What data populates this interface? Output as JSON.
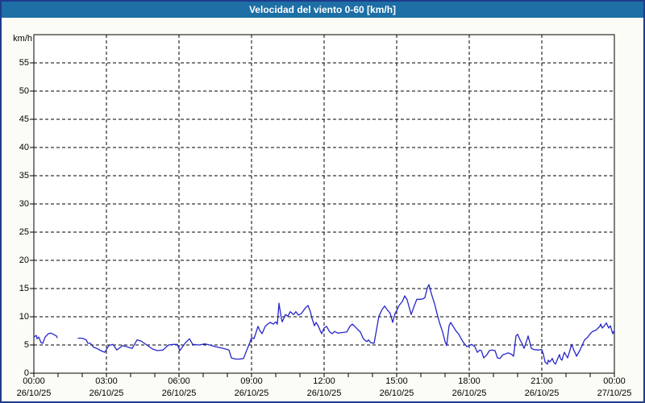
{
  "title": "Velocidad del viento 0-60 [km/h]",
  "y_unit_label": "km/h",
  "colors": {
    "frame": "#1e3c8c",
    "title_bar": "#1d6fa5",
    "title_text": "#ffffff",
    "window_bg": "#fcfcf6",
    "plot_bg": "#ffffff",
    "grid": "#000000",
    "axis_text": "#000000",
    "line": "#2626c9"
  },
  "chart_data": {
    "type": "line",
    "title": "Velocidad del viento 0-60 [km/h]",
    "ylabel": "km/h",
    "xlabel": "",
    "ylim": [
      0,
      60
    ],
    "y_ticks": [
      0,
      5,
      10,
      15,
      20,
      25,
      30,
      35,
      40,
      45,
      50,
      55
    ],
    "x_minutes_range": [
      0,
      1440
    ],
    "minor_tick_minutes": 60,
    "grid": "dashed",
    "legend": "none",
    "x_major_ticks": [
      {
        "minutes": 0,
        "time": "00:00",
        "date": "26/10/25"
      },
      {
        "minutes": 180,
        "time": "03:00",
        "date": "26/10/25"
      },
      {
        "minutes": 360,
        "time": "06:00",
        "date": "26/10/25"
      },
      {
        "minutes": 540,
        "time": "09:00",
        "date": "26/10/25"
      },
      {
        "minutes": 720,
        "time": "12:00",
        "date": "26/10/25"
      },
      {
        "minutes": 900,
        "time": "15:00",
        "date": "26/10/25"
      },
      {
        "minutes": 1080,
        "time": "18:00",
        "date": "26/10/25"
      },
      {
        "minutes": 1260,
        "time": "21:00",
        "date": "26/10/25"
      },
      {
        "minutes": 1440,
        "time": "00:00",
        "date": "27/10/25"
      }
    ],
    "gap_note": "no data between minute 58 and minute 110 (null entry)",
    "series": [
      {
        "name": "Velocidad del viento",
        "color": "#2626c9",
        "points": [
          [
            0,
            6.4
          ],
          [
            6,
            6.7
          ],
          [
            8,
            6.1
          ],
          [
            12,
            6.4
          ],
          [
            18,
            5.4
          ],
          [
            22,
            5.3
          ],
          [
            28,
            6.4
          ],
          [
            36,
            7.0
          ],
          [
            42,
            7.1
          ],
          [
            48,
            6.9
          ],
          [
            56,
            6.6
          ],
          [
            58,
            6.3
          ],
          null,
          [
            110,
            6.2
          ],
          [
            120,
            6.2
          ],
          [
            130,
            5.9
          ],
          [
            134,
            5.3
          ],
          [
            140,
            5.3
          ],
          [
            148,
            4.6
          ],
          [
            156,
            4.4
          ],
          [
            166,
            4.0
          ],
          [
            176,
            3.7
          ],
          [
            186,
            4.9
          ],
          [
            196,
            5.1
          ],
          [
            206,
            4.1
          ],
          [
            220,
            4.9
          ],
          [
            230,
            4.7
          ],
          [
            244,
            4.4
          ],
          [
            256,
            5.9
          ],
          [
            266,
            5.7
          ],
          [
            280,
            5.0
          ],
          [
            294,
            4.3
          ],
          [
            306,
            4.0
          ],
          [
            320,
            4.1
          ],
          [
            334,
            5.0
          ],
          [
            346,
            5.1
          ],
          [
            356,
            5.1
          ],
          [
            362,
            4.0
          ],
          [
            376,
            5.4
          ],
          [
            386,
            6.1
          ],
          [
            394,
            5.1
          ],
          [
            410,
            5.0
          ],
          [
            424,
            5.2
          ],
          [
            436,
            5.0
          ],
          [
            450,
            4.7
          ],
          [
            470,
            4.4
          ],
          [
            484,
            4.1
          ],
          [
            490,
            2.7
          ],
          [
            500,
            2.5
          ],
          [
            510,
            2.5
          ],
          [
            520,
            2.6
          ],
          [
            526,
            3.7
          ],
          [
            534,
            5.1
          ],
          [
            540,
            6.3
          ],
          [
            546,
            6.1
          ],
          [
            556,
            8.3
          ],
          [
            560,
            7.6
          ],
          [
            566,
            7.0
          ],
          [
            574,
            8.3
          ],
          [
            580,
            8.7
          ],
          [
            586,
            9.0
          ],
          [
            594,
            8.7
          ],
          [
            600,
            9.1
          ],
          [
            604,
            8.7
          ],
          [
            608,
            12.4
          ],
          [
            614,
            9.7
          ],
          [
            616,
            9.1
          ],
          [
            624,
            10.4
          ],
          [
            630,
            10.1
          ],
          [
            636,
            10.9
          ],
          [
            644,
            10.4
          ],
          [
            650,
            10.9
          ],
          [
            656,
            10.3
          ],
          [
            664,
            10.6
          ],
          [
            674,
            11.6
          ],
          [
            680,
            12.0
          ],
          [
            686,
            10.9
          ],
          [
            690,
            9.7
          ],
          [
            696,
            8.4
          ],
          [
            700,
            9.0
          ],
          [
            706,
            8.3
          ],
          [
            710,
            7.6
          ],
          [
            714,
            7.0
          ],
          [
            720,
            8.0
          ],
          [
            726,
            8.3
          ],
          [
            734,
            7.3
          ],
          [
            740,
            7.0
          ],
          [
            746,
            7.4
          ],
          [
            754,
            7.1
          ],
          [
            764,
            7.2
          ],
          [
            776,
            7.3
          ],
          [
            784,
            8.3
          ],
          [
            790,
            8.7
          ],
          [
            796,
            8.3
          ],
          [
            804,
            7.7
          ],
          [
            810,
            7.3
          ],
          [
            816,
            6.3
          ],
          [
            820,
            5.9
          ],
          [
            826,
            5.6
          ],
          [
            830,
            5.9
          ],
          [
            836,
            5.4
          ],
          [
            844,
            5.3
          ],
          [
            850,
            7.7
          ],
          [
            856,
            10.1
          ],
          [
            864,
            11.3
          ],
          [
            870,
            11.9
          ],
          [
            876,
            11.3
          ],
          [
            884,
            10.6
          ],
          [
            890,
            9.0
          ],
          [
            896,
            10.6
          ],
          [
            900,
            11.1
          ],
          [
            906,
            12.0
          ],
          [
            914,
            12.7
          ],
          [
            920,
            13.7
          ],
          [
            926,
            13.0
          ],
          [
            934,
            10.9
          ],
          [
            936,
            10.4
          ],
          [
            944,
            12.0
          ],
          [
            950,
            13.1
          ],
          [
            960,
            13.1
          ],
          [
            966,
            13.2
          ],
          [
            970,
            13.4
          ],
          [
            976,
            15.1
          ],
          [
            980,
            15.7
          ],
          [
            986,
            14.1
          ],
          [
            994,
            12.3
          ],
          [
            1000,
            10.6
          ],
          [
            1006,
            9.0
          ],
          [
            1014,
            7.3
          ],
          [
            1020,
            5.6
          ],
          [
            1024,
            4.9
          ],
          [
            1030,
            8.4
          ],
          [
            1034,
            9.0
          ],
          [
            1040,
            8.3
          ],
          [
            1046,
            7.6
          ],
          [
            1054,
            6.9
          ],
          [
            1060,
            6.1
          ],
          [
            1066,
            5.4
          ],
          [
            1074,
            4.7
          ],
          [
            1080,
            4.9
          ],
          [
            1086,
            5.1
          ],
          [
            1094,
            4.7
          ],
          [
            1100,
            3.7
          ],
          [
            1106,
            4.1
          ],
          [
            1110,
            4.0
          ],
          [
            1116,
            2.7
          ],
          [
            1124,
            3.3
          ],
          [
            1130,
            4.0
          ],
          [
            1136,
            4.1
          ],
          [
            1144,
            4.0
          ],
          [
            1150,
            2.7
          ],
          [
            1156,
            2.6
          ],
          [
            1164,
            3.3
          ],
          [
            1170,
            3.4
          ],
          [
            1176,
            3.6
          ],
          [
            1184,
            3.4
          ],
          [
            1190,
            3.0
          ],
          [
            1196,
            6.6
          ],
          [
            1200,
            6.9
          ],
          [
            1206,
            5.9
          ],
          [
            1210,
            5.4
          ],
          [
            1216,
            4.4
          ],
          [
            1224,
            6.1
          ],
          [
            1226,
            6.6
          ],
          [
            1234,
            4.4
          ],
          [
            1240,
            4.2
          ],
          [
            1250,
            4.1
          ],
          [
            1260,
            4.2
          ],
          [
            1264,
            3.3
          ],
          [
            1268,
            2.0
          ],
          [
            1274,
            1.6
          ],
          [
            1276,
            2.3
          ],
          [
            1280,
            2.0
          ],
          [
            1286,
            2.6
          ],
          [
            1290,
            1.9
          ],
          [
            1294,
            1.6
          ],
          [
            1300,
            2.7
          ],
          [
            1304,
            3.3
          ],
          [
            1306,
            2.6
          ],
          [
            1310,
            2.3
          ],
          [
            1314,
            3.3
          ],
          [
            1316,
            3.7
          ],
          [
            1324,
            2.7
          ],
          [
            1330,
            4.1
          ],
          [
            1334,
            5.1
          ],
          [
            1340,
            4.0
          ],
          [
            1344,
            3.4
          ],
          [
            1346,
            3.0
          ],
          [
            1354,
            4.0
          ],
          [
            1360,
            4.9
          ],
          [
            1366,
            5.9
          ],
          [
            1374,
            6.4
          ],
          [
            1380,
            7.0
          ],
          [
            1386,
            7.4
          ],
          [
            1394,
            7.6
          ],
          [
            1404,
            8.3
          ],
          [
            1406,
            8.7
          ],
          [
            1410,
            8.0
          ],
          [
            1414,
            8.3
          ],
          [
            1420,
            8.9
          ],
          [
            1426,
            8.0
          ],
          [
            1430,
            8.4
          ],
          [
            1436,
            7.0
          ],
          [
            1440,
            7.6
          ]
        ]
      }
    ]
  }
}
